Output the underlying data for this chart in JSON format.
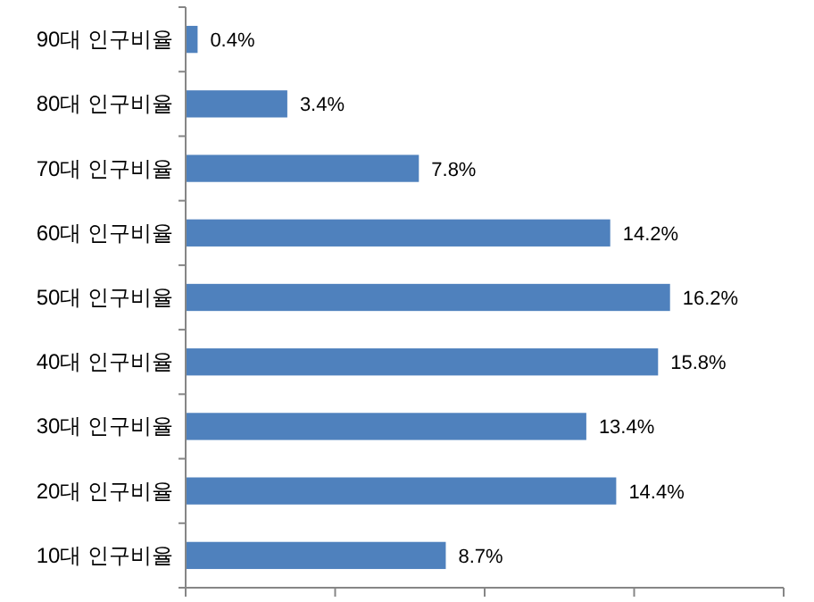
{
  "chart_data": {
    "type": "bar",
    "orientation": "horizontal",
    "categories": [
      "90대 인구비율",
      "80대 인구비율",
      "70대 인구비율",
      "60대 인구비율",
      "50대 인구비율",
      "40대 인구비율",
      "30대 인구비율",
      "20대 인구비율",
      "10대 인구비율"
    ],
    "values": [
      0.4,
      3.4,
      7.8,
      14.2,
      16.2,
      15.8,
      13.4,
      14.4,
      8.7
    ],
    "value_labels": [
      "0.4%",
      "3.4%",
      "7.8%",
      "14.2%",
      "16.2%",
      "15.8%",
      "13.4%",
      "14.4%",
      "8.7%"
    ],
    "color": "#4f81bd",
    "xlim": [
      0,
      20
    ],
    "xticks": [
      {
        "value": 0,
        "label": null
      },
      {
        "value": 5,
        "label": null
      },
      {
        "value": 10,
        "label": null
      },
      {
        "value": 15,
        "label": null
      },
      {
        "value": 20,
        "label": null
      }
    ],
    "tick_labels": "y",
    "grid": false
  }
}
